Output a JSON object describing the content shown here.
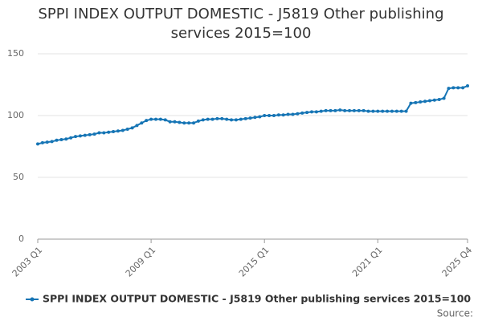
{
  "chart_data": {
    "type": "line",
    "title": "SPPI INDEX OUTPUT DOMESTIC - J5819 Other publishing services 2015=100",
    "categories": [
      "2003 Q1",
      null,
      null,
      null,
      null,
      null,
      null,
      null,
      null,
      null,
      null,
      null,
      null,
      null,
      null,
      null,
      null,
      null,
      null,
      null,
      null,
      null,
      null,
      null,
      "2009 Q1",
      null,
      null,
      null,
      null,
      null,
      null,
      null,
      null,
      null,
      null,
      null,
      null,
      null,
      null,
      null,
      null,
      null,
      null,
      null,
      null,
      null,
      null,
      null,
      "2015 Q1",
      null,
      null,
      null,
      null,
      null,
      null,
      null,
      null,
      null,
      null,
      null,
      null,
      null,
      null,
      null,
      null,
      null,
      null,
      null,
      null,
      null,
      null,
      null,
      "2021 Q1",
      null,
      null,
      null,
      null,
      null,
      null,
      null,
      null,
      null,
      null,
      null,
      null,
      null,
      null,
      null,
      null,
      null,
      null,
      "2025 Q4"
    ],
    "series": [
      {
        "name": "SPPI INDEX OUTPUT DOMESTIC - J5819 Other publishing services 2015=100",
        "color": "#1675b5",
        "values": [
          77,
          78,
          78.5,
          79,
          80,
          80.5,
          81,
          82,
          83,
          83.5,
          84,
          84.5,
          85,
          86,
          86,
          86.5,
          87,
          87.5,
          88,
          89,
          90,
          92,
          94,
          96,
          97,
          97,
          97,
          96.5,
          95,
          95,
          94.5,
          94,
          94,
          94,
          95.5,
          96.5,
          97,
          97,
          97.5,
          97.5,
          97,
          96.5,
          96.5,
          97,
          97.5,
          98,
          98.5,
          99,
          100,
          100,
          100,
          100.5,
          100.5,
          101,
          101,
          101.5,
          102,
          102.5,
          103,
          103,
          103.5,
          104,
          104,
          104,
          104.5,
          104,
          104,
          104,
          104,
          104,
          103.5,
          103.5,
          103.5,
          103.5,
          103.5,
          103.5,
          103.5,
          103.5,
          103.5,
          110,
          110.5,
          111,
          111.5,
          112,
          112.5,
          113,
          114,
          122,
          122.5,
          122.5,
          122.5,
          124
        ]
      }
    ],
    "ylim": [
      0,
      150
    ],
    "yticks": [
      0,
      50,
      100,
      150
    ],
    "grid": true,
    "source": "Source:"
  }
}
